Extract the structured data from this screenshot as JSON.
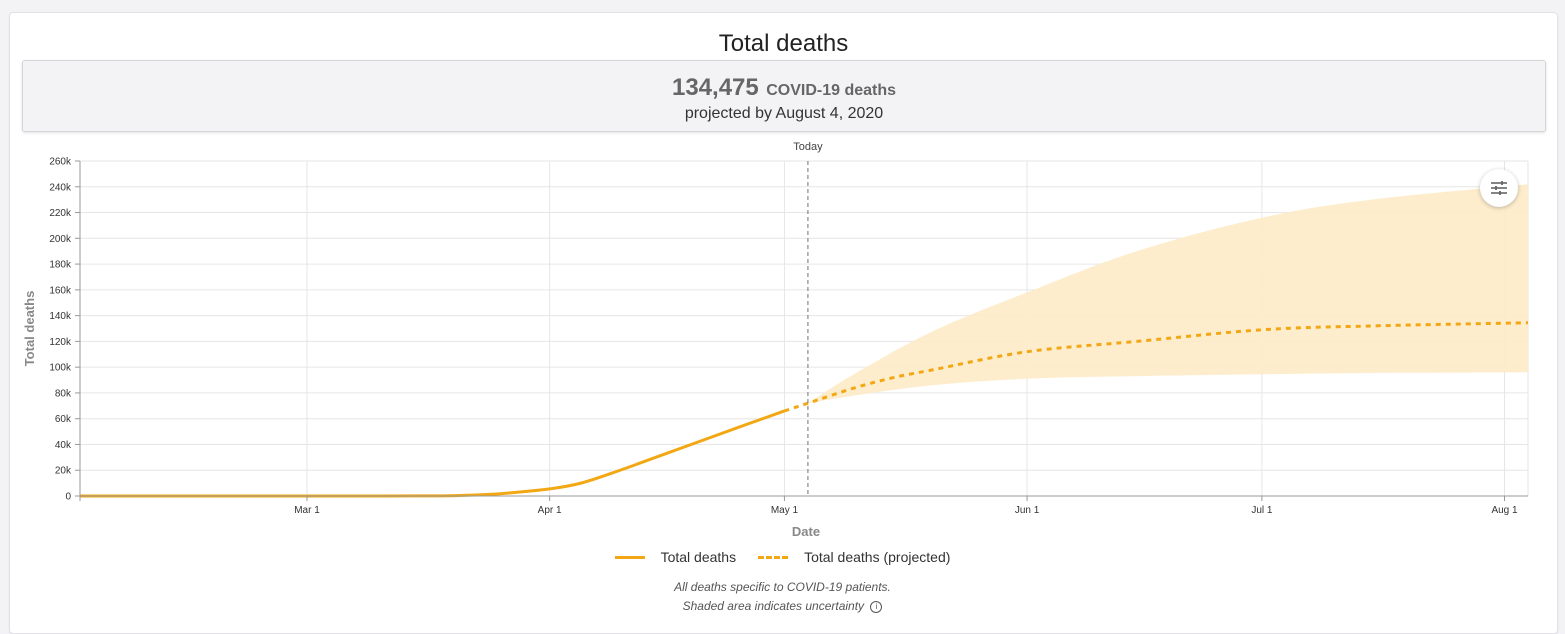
{
  "card": {
    "title": "Total deaths"
  },
  "summary": {
    "number": "134,475",
    "unit": "COVID-19 deaths",
    "subtitle": "projected by August 4, 2020"
  },
  "settings": {
    "icon": "sliders-icon"
  },
  "legend": {
    "observed": "Total deaths",
    "projected": "Total deaths (projected)"
  },
  "notes": {
    "line1": "All deaths specific to COVID-19 patients.",
    "line2": "Shaded area indicates uncertainty",
    "info_icon": "info-icon"
  },
  "chart_data": {
    "type": "line",
    "xlabel": "Date",
    "ylabel": "Total deaths",
    "x_range": [
      "2020-02-01",
      "2020-08-04"
    ],
    "ylim": [
      0,
      260000
    ],
    "y_ticks": [
      0,
      20000,
      40000,
      60000,
      80000,
      100000,
      120000,
      140000,
      160000,
      180000,
      200000,
      220000,
      240000,
      260000
    ],
    "y_tick_labels": [
      "0",
      "20k",
      "40k",
      "60k",
      "80k",
      "100k",
      "120k",
      "140k",
      "160k",
      "180k",
      "200k",
      "220k",
      "240k",
      "260k"
    ],
    "x_ticks": [
      "2020-03-01",
      "2020-04-01",
      "2020-05-01",
      "2020-06-01",
      "2020-07-01",
      "2020-08-01"
    ],
    "x_tick_labels": [
      "Mar 1",
      "Apr 1",
      "May 1",
      "Jun 1",
      "Jul 1",
      "Aug 1"
    ],
    "today": {
      "date": "2020-05-04",
      "label": "Today"
    },
    "grid": true,
    "legend_position": "bottom",
    "colors": {
      "line": "#f2a814",
      "band": "#fdebc8"
    },
    "series": [
      {
        "name": "Total deaths",
        "style": "solid",
        "points": [
          [
            "2020-02-01",
            0
          ],
          [
            "2020-03-01",
            0
          ],
          [
            "2020-03-15",
            60
          ],
          [
            "2020-03-20",
            300
          ],
          [
            "2020-03-25",
            1500
          ],
          [
            "2020-03-28",
            3000
          ],
          [
            "2020-04-01",
            5500
          ],
          [
            "2020-04-05",
            10000
          ],
          [
            "2020-04-10",
            20000
          ],
          [
            "2020-04-15",
            31000
          ],
          [
            "2020-04-20",
            42000
          ],
          [
            "2020-04-25",
            53000
          ],
          [
            "2020-05-01",
            66000
          ]
        ]
      },
      {
        "name": "Total deaths (projected)",
        "style": "dashed",
        "points": [
          [
            "2020-05-01",
            66000
          ],
          [
            "2020-05-04",
            72000
          ],
          [
            "2020-05-10",
            84000
          ],
          [
            "2020-05-15",
            92000
          ],
          [
            "2020-05-20",
            98000
          ],
          [
            "2020-06-01",
            112000
          ],
          [
            "2020-06-15",
            120000
          ],
          [
            "2020-07-01",
            129000
          ],
          [
            "2020-07-15",
            132000
          ],
          [
            "2020-08-04",
            134475
          ]
        ]
      }
    ],
    "uncertainty_band": {
      "dates": [
        "2020-05-04",
        "2020-05-10",
        "2020-05-20",
        "2020-06-01",
        "2020-06-15",
        "2020-07-01",
        "2020-07-15",
        "2020-08-04"
      ],
      "lower": [
        72000,
        78000,
        86000,
        91000,
        93000,
        94500,
        95500,
        96000
      ],
      "upper": [
        72000,
        95000,
        128000,
        158000,
        190000,
        216000,
        230000,
        242000
      ]
    }
  }
}
